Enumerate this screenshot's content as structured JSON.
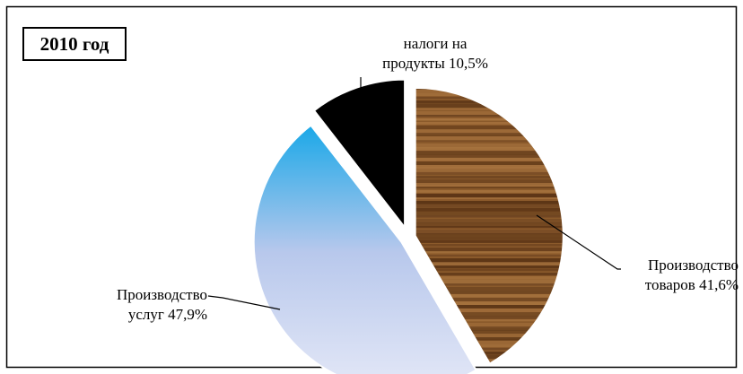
{
  "chart_data": {
    "type": "pie",
    "title": "2010 год",
    "slices": [
      {
        "name": "Производство товаров",
        "line1": "Производство",
        "line2": "товаров 41,6%",
        "value": 41.6,
        "pattern": "wood-texture"
      },
      {
        "name": "Производство услуг",
        "line1": "Производство",
        "line2": "услуг 47,9%",
        "value": 47.9,
        "pattern": "blue-gradient"
      },
      {
        "name": "налоги на продукты",
        "line1": "налоги на",
        "line2": "продукты 10,5%",
        "value": 10.5,
        "color": "#000000"
      }
    ],
    "colors": {
      "wood_dark": "#5a3415",
      "wood_mid": "#8b5a2b",
      "wood_light": "#a8743f",
      "blue_top": "#1aa8e8",
      "blue_mid": "#b8c8ec",
      "blue_bottom": "#e4e8f7"
    },
    "exploded": true,
    "legend": "none",
    "frame": true
  }
}
